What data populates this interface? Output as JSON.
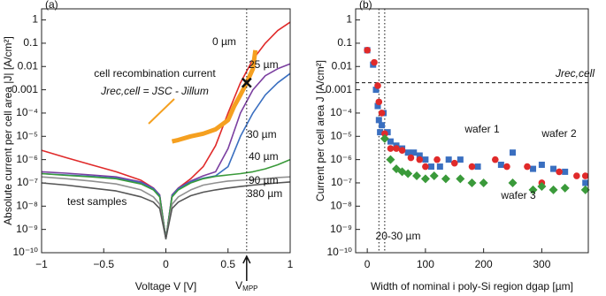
{
  "chart_data": [
    {
      "type": "line",
      "panel_label": "(a)",
      "x_label": "Voltage V [V]",
      "y_label": "Absolute current per cell area |J| [A/cm²]",
      "xlim": [
        -1,
        1
      ],
      "ylim": [
        1e-10,
        3
      ],
      "log_y": true,
      "xticks": [
        {
          "value": -1,
          "label": "−1"
        },
        {
          "value": -0.5,
          "label": "−0.5"
        },
        0,
        0.5,
        1
      ],
      "yticks": [
        {
          "value": 1e-10,
          "label": "10⁻¹⁰"
        },
        {
          "value": 1e-09,
          "label": "10⁻⁹"
        },
        {
          "value": 1e-08,
          "label": "10⁻⁸"
        },
        {
          "value": 1e-07,
          "label": "10⁻⁷"
        },
        {
          "value": 1e-06,
          "label": "10⁻⁶"
        },
        {
          "value": 1e-05,
          "label": "10⁻⁵"
        },
        {
          "value": 0.0001,
          "label": "10⁻⁴"
        },
        0.001,
        0.01,
        0.1,
        1
      ],
      "x": [
        -1,
        -0.8,
        -0.6,
        -0.4,
        -0.2,
        -0.1,
        -0.05,
        0,
        0.05,
        0.1,
        0.2,
        0.3,
        0.4,
        0.5,
        0.6,
        0.7,
        0.8,
        0.9,
        1
      ],
      "series": [
        {
          "name": "0 µm",
          "color": "#e02a2a",
          "values": [
            2.5e-06,
            1.2e-06,
            6e-07,
            3e-07,
            1.3e-07,
            6e-08,
            3e-08,
            4e-10,
            3e-08,
            6e-08,
            1.5e-07,
            5e-07,
            4e-06,
            0.0001,
            0.002,
            0.02,
            0.1,
            0.35,
            0.8
          ]
        },
        {
          "name": "25 µm",
          "color": "#7b3fa0",
          "values": [
            3e-07,
            2.6e-07,
            2.2e-07,
            1.8e-07,
            1.1e-07,
            6e-08,
            3e-08,
            4e-10,
            3e-08,
            6e-08,
            1.2e-07,
            2e-07,
            3e-07,
            3e-06,
            0.0001,
            0.001,
            0.004,
            0.008,
            0.013
          ]
        },
        {
          "name": "30 µm",
          "color": "#3a6fc0",
          "values": [
            2.5e-07,
            2.2e-07,
            1.9e-07,
            1.6e-07,
            1e-07,
            5.5e-08,
            2.8e-08,
            4e-10,
            2.8e-08,
            5.5e-08,
            1.1e-07,
            1.6e-07,
            2e-07,
            5e-07,
            1e-05,
            0.0001,
            0.0006,
            0.002,
            0.005
          ]
        },
        {
          "name": "40 µm",
          "color": "#3a9a3a",
          "values": [
            2.5e-07,
            2.1e-07,
            1.8e-07,
            1.5e-07,
            9e-08,
            5e-08,
            2.5e-08,
            4e-10,
            2.5e-08,
            5e-08,
            1e-07,
            1.5e-07,
            1.9e-07,
            2.2e-07,
            2.5e-07,
            3e-07,
            4e-07,
            6e-07,
            1e-06
          ]
        },
        {
          "name": "90 µm",
          "color": "#909090",
          "values": [
            1.8e-07,
            1.5e-07,
            1.2e-07,
            9e-08,
            5e-08,
            2.5e-08,
            1.2e-08,
            4e-10,
            1.2e-08,
            2.5e-08,
            5e-08,
            8e-08,
            1e-07,
            1.2e-07,
            1.3e-07,
            1.4e-07,
            1.5e-07,
            1.7e-07,
            1.8e-07
          ]
        },
        {
          "name": "380 µm",
          "color": "#555555",
          "values": [
            1e-07,
            8e-08,
            6e-08,
            4.5e-08,
            2.5e-08,
            1.5e-08,
            8e-09,
            4e-10,
            8e-09,
            1.5e-08,
            2.8e-08,
            4e-08,
            5e-08,
            6e-08,
            7e-08,
            8e-08,
            9e-08,
            1e-07,
            1.1e-07
          ]
        },
        {
          "name": "cell recombination current",
          "color": "#f5a020",
          "thick": true,
          "x": [
            0.05,
            0.1,
            0.2,
            0.3,
            0.4,
            0.5,
            0.55,
            0.6,
            0.65,
            0.7,
            0.72
          ],
          "values": [
            6e-06,
            7e-06,
            1e-05,
            1.3e-05,
            2e-05,
            5e-05,
            0.0002,
            0.0006,
            0.002,
            0.008,
            0.05
          ]
        }
      ],
      "formula": "Jrec,cell = JSC - Jillum",
      "sample_note": "test samples",
      "vline": 0.65,
      "vline_label": {
        "main": "V",
        "sub": "MPP"
      },
      "marker": {
        "x": 0.65,
        "y": 0.002
      }
    },
    {
      "type": "scatter",
      "panel_label": "(b)",
      "x_label": "Width of nominal i poly-Si region dgap [µm]",
      "y_label": "Current per cell area J [A/cm²]",
      "xlim": [
        -20,
        380
      ],
      "ylim": [
        1e-10,
        3
      ],
      "log_y": true,
      "xticks": [
        0,
        100,
        200,
        300
      ],
      "yticks": [
        {
          "value": 1e-10,
          "label": "10⁻¹⁰"
        },
        {
          "value": 1e-09,
          "label": "10⁻⁹"
        },
        {
          "value": 1e-08,
          "label": "10⁻⁸"
        },
        {
          "value": 1e-07,
          "label": "10⁻⁷"
        },
        {
          "value": 1e-06,
          "label": "10⁻⁶"
        },
        {
          "value": 1e-05,
          "label": "10⁻⁵"
        },
        {
          "value": 0.0001,
          "label": "10⁻⁴"
        },
        0.001,
        0.01,
        0.1,
        1
      ],
      "series": [
        {
          "name": "wafer 1",
          "color": "#3a6fc0",
          "marker": "square",
          "x": [
            0,
            10,
            15,
            18,
            20,
            22,
            25,
            28,
            35,
            40,
            50,
            60,
            70,
            80,
            90,
            100,
            110,
            125,
            140,
            160,
            190,
            230,
            250,
            285,
            300,
            320,
            340,
            375
          ],
          "values": [
            0.05,
            0.012,
            0.001,
            0.0002,
            5e-05,
            1.5e-05,
            3e-05,
            0.0001,
            1.5e-05,
            6e-06,
            4e-06,
            3e-06,
            2e-06,
            2e-06,
            1.5e-06,
            1e-06,
            5e-07,
            5e-07,
            1e-06,
            1e-06,
            5e-07,
            6e-07,
            2e-06,
            4e-07,
            6e-07,
            4e-07,
            3e-07,
            1e-07
          ]
        },
        {
          "name": "wafer 2",
          "color": "#e02a2a",
          "marker": "circle",
          "x": [
            0,
            12,
            18,
            20,
            25,
            30,
            40,
            50,
            60,
            75,
            90,
            100,
            120,
            150,
            180,
            220,
            240,
            275,
            300,
            330,
            360,
            375
          ],
          "values": [
            0.05,
            0.015,
            0.0015,
            0.0003,
            0.0001,
            1.3e-05,
            3e-06,
            3e-06,
            2.5e-06,
            1.2e-06,
            1e-06,
            5e-07,
            1e-06,
            7e-07,
            5e-07,
            1e-06,
            5e-07,
            5e-07,
            1e-07,
            3e-07,
            2e-07,
            2e-07
          ]
        },
        {
          "name": "wafer 3",
          "color": "#3a9a3a",
          "marker": "diamond",
          "x": [
            30,
            40,
            50,
            60,
            70,
            85,
            100,
            115,
            135,
            160,
            180,
            200,
            250,
            285,
            300,
            320,
            340,
            375
          ],
          "values": [
            8e-06,
            1e-06,
            4e-07,
            3e-07,
            2.5e-07,
            2e-07,
            1.5e-07,
            2e-07,
            1.5e-07,
            1.5e-07,
            1e-07,
            1e-07,
            1e-07,
            5e-08,
            7e-08,
            5e-08,
            6e-08,
            5e-08
          ]
        }
      ],
      "hline": 0.002,
      "hline_label": "Jrec,cell",
      "vlines": [
        20,
        30
      ],
      "vlines_label": "20-30 µm"
    }
  ]
}
